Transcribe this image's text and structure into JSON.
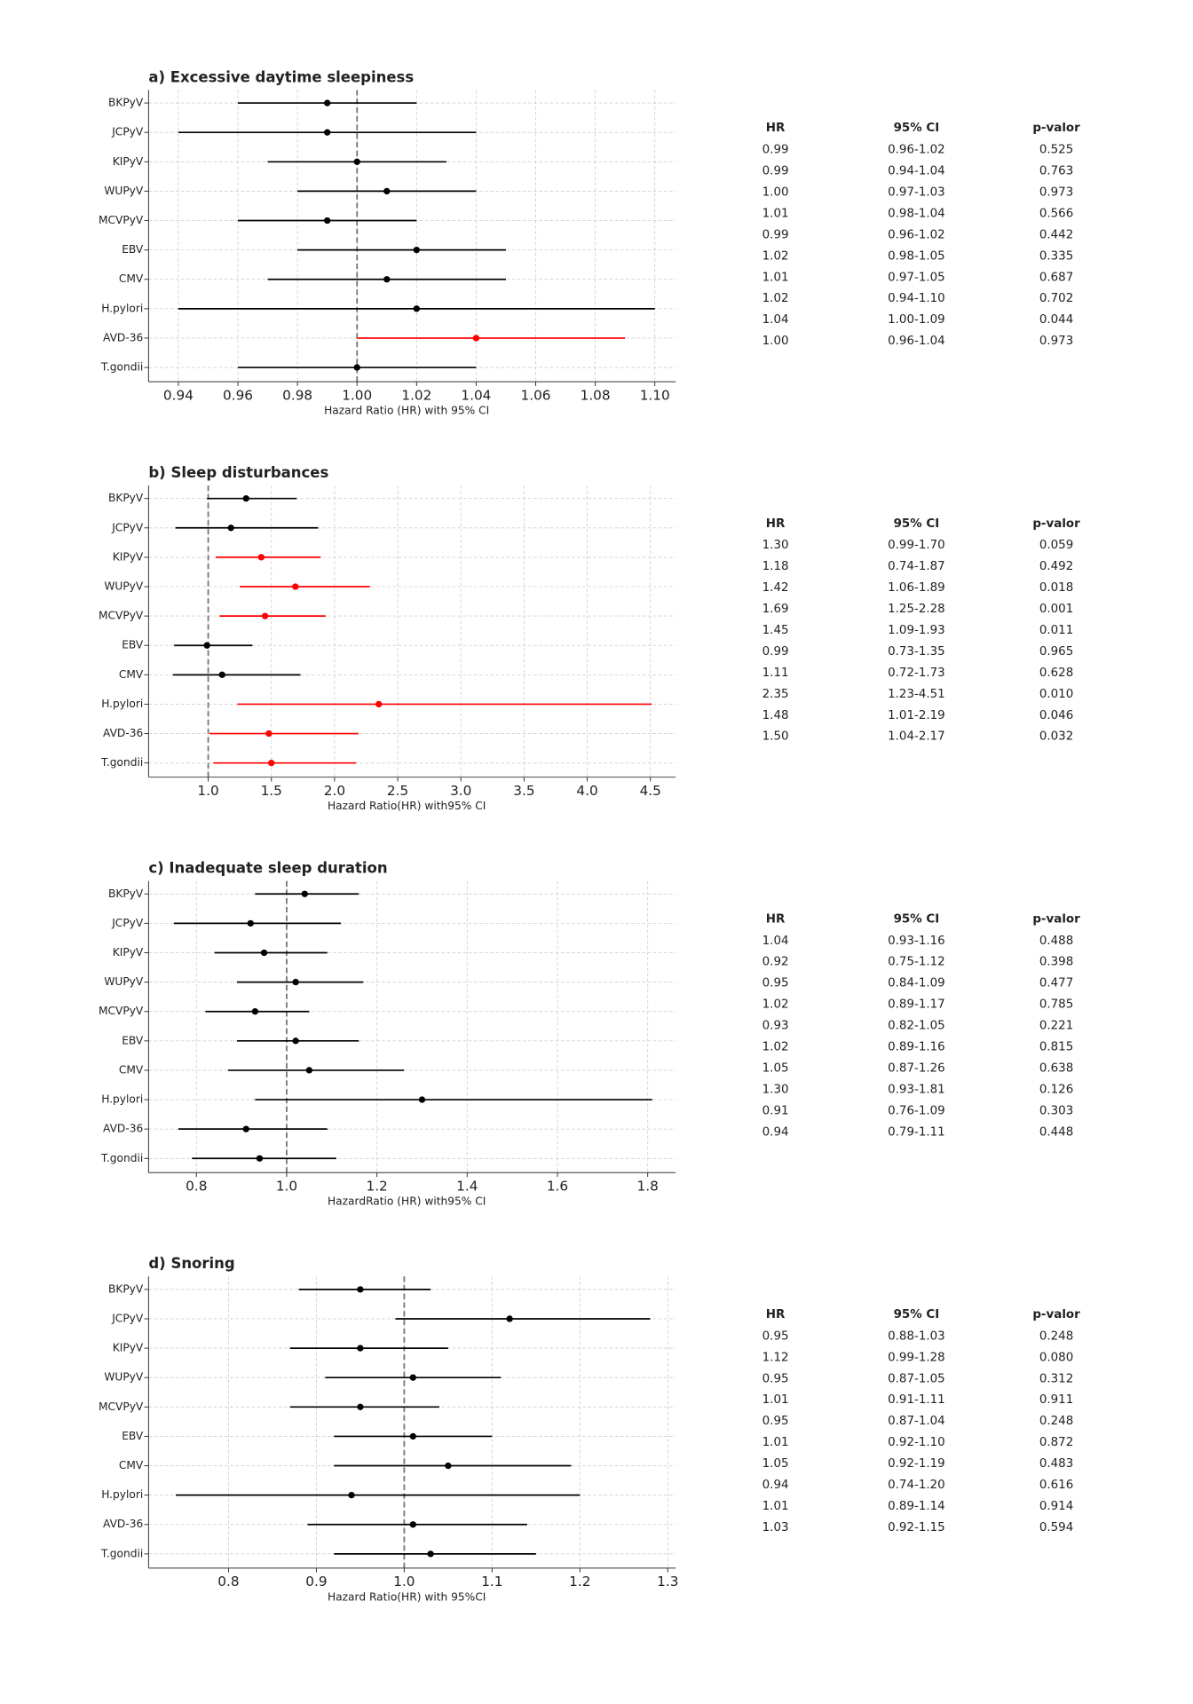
{
  "chart_data": [
    {
      "type": "forest",
      "title": "a) Excessive daytime sleepiness",
      "xlabel": "Hazard Ratio (HR) with 95% CI",
      "categories": [
        "BKPyV",
        "JCPyV",
        "KIPyV",
        "WUPyV",
        "MCVPyV",
        "EBV",
        "CMV",
        "H.pylori",
        "AVD-36",
        "T.gondii"
      ],
      "values": [
        0.99,
        0.99,
        1.0,
        1.01,
        0.99,
        1.02,
        1.01,
        1.02,
        1.04,
        1.0
      ],
      "value_labels": [
        "0.99",
        "0.99",
        "1.00",
        "1.01",
        "0.99",
        "1.02",
        "1.01",
        "1.02",
        "1.04",
        "1.00"
      ],
      "ci_low": [
        0.96,
        0.94,
        0.97,
        0.98,
        0.96,
        0.98,
        0.97,
        0.94,
        1.0,
        0.96
      ],
      "ci_high": [
        1.02,
        1.04,
        1.03,
        1.04,
        1.02,
        1.05,
        1.05,
        1.1,
        1.09,
        1.04
      ],
      "ci_labels": [
        "0.96-1.02",
        "0.94-1.04",
        "0.97-1.03",
        "0.98-1.04",
        "0.96-1.02",
        "0.98-1.05",
        "0.97-1.05",
        "0.94-1.10",
        "1.00-1.09",
        "0.96-1.04"
      ],
      "p_values": [
        "0.525",
        "0.763",
        "0.973",
        "0.566",
        "0.442",
        "0.335",
        "0.687",
        "0.702",
        "0.044",
        "0.973"
      ],
      "colors": [
        "#000000",
        "#000000",
        "#000000",
        "#000000",
        "#000000",
        "#000000",
        "#000000",
        "#000000",
        "#ff0000",
        "#000000"
      ],
      "table_columns": [
        "HR",
        "95% CI",
        "p-valor"
      ],
      "xlim": [
        0.93,
        1.107
      ],
      "xticks": [
        0.94,
        0.96,
        0.98,
        {
          "value": 1.0,
          "label": "1.00"
        },
        1.02,
        1.04,
        1.06,
        1.08,
        {
          "value": 1.1,
          "label": "1.10"
        }
      ],
      "ref_line": 1,
      "grid": true
    },
    {
      "type": "forest",
      "title": "b) Sleep disturbances",
      "xlabel": "Hazard Ratio(HR) with95% CI",
      "categories": [
        "BKPyV",
        "JCPyV",
        "KIPyV",
        "WUPyV",
        "MCVPyV",
        "EBV",
        "CMV",
        "H.pylori",
        "AVD-36",
        "T.gondii"
      ],
      "values": [
        1.3,
        1.18,
        1.42,
        1.69,
        1.45,
        0.99,
        1.11,
        2.35,
        1.48,
        1.5
      ],
      "value_labels": [
        "1.30",
        "1.18",
        "1.42",
        "1.69",
        "1.45",
        "0.99",
        "1.11",
        "2.35",
        "1.48",
        "1.50"
      ],
      "ci_low": [
        0.99,
        0.74,
        1.06,
        1.25,
        1.09,
        0.73,
        0.72,
        1.23,
        1.01,
        1.04
      ],
      "ci_high": [
        1.7,
        1.87,
        1.89,
        2.28,
        1.93,
        1.35,
        1.73,
        4.51,
        2.19,
        2.17
      ],
      "ci_labels": [
        "0.99-1.70",
        "0.74-1.87",
        "1.06-1.89",
        "1.25-2.28",
        "1.09-1.93",
        "0.73-1.35",
        "0.72-1.73",
        "1.23-4.51",
        "1.01-2.19",
        "1.04-2.17"
      ],
      "p_values": [
        "0.059",
        "0.492",
        "0.018",
        "0.001",
        "0.011",
        "0.965",
        "0.628",
        "0.010",
        "0.046",
        "0.032"
      ],
      "colors": [
        "#000000",
        "#000000",
        "#ff0000",
        "#ff0000",
        "#ff0000",
        "#000000",
        "#000000",
        "#ff0000",
        "#ff0000",
        "#ff0000"
      ],
      "table_columns": [
        "HR",
        "95% CI",
        "p-valor"
      ],
      "xlim": [
        0.528,
        4.7
      ],
      "xticks": [
        {
          "value": 1,
          "label": "1.0"
        },
        1.5,
        {
          "value": 2,
          "label": "2.0"
        },
        2.5,
        {
          "value": 3,
          "label": "3.0"
        },
        3.5,
        {
          "value": 4,
          "label": "4.0"
        },
        4.5
      ],
      "ref_line": 1,
      "grid": true
    },
    {
      "type": "forest",
      "title": "c) Inadequate sleep duration",
      "xlabel": "HazardRatio (HR) with95% CI",
      "categories": [
        "BKPyV",
        "JCPyV",
        "KIPyV",
        "WUPyV",
        "MCVPyV",
        "EBV",
        "CMV",
        "H.pylori",
        "AVD-36",
        "T.gondii"
      ],
      "values": [
        1.04,
        0.92,
        0.95,
        1.02,
        0.93,
        1.02,
        1.05,
        1.3,
        0.91,
        0.94
      ],
      "value_labels": [
        "1.04",
        "0.92",
        "0.95",
        "1.02",
        "0.93",
        "1.02",
        "1.05",
        "1.30",
        "0.91",
        "0.94"
      ],
      "ci_low": [
        0.93,
        0.75,
        0.84,
        0.89,
        0.82,
        0.89,
        0.87,
        0.93,
        0.76,
        0.79
      ],
      "ci_high": [
        1.16,
        1.12,
        1.09,
        1.17,
        1.05,
        1.16,
        1.26,
        1.81,
        1.09,
        1.11
      ],
      "ci_labels": [
        "0.93-1.16",
        "0.75-1.12",
        "0.84-1.09",
        "0.89-1.17",
        "0.82-1.05",
        "0.89-1.16",
        "0.87-1.26",
        "0.93-1.81",
        "0.76-1.09",
        "0.79-1.11"
      ],
      "p_values": [
        "0.488",
        "0.398",
        "0.477",
        "0.785",
        "0.221",
        "0.815",
        "0.638",
        "0.126",
        "0.303",
        "0.448"
      ],
      "colors": [
        "#000000",
        "#000000",
        "#000000",
        "#000000",
        "#000000",
        "#000000",
        "#000000",
        "#000000",
        "#000000",
        "#000000"
      ],
      "table_columns": [
        "HR",
        "95% CI",
        "p-valor"
      ],
      "xlim": [
        0.694,
        1.862
      ],
      "xticks": [
        0.8,
        {
          "value": 1,
          "label": "1.0"
        },
        1.2,
        1.4,
        1.6,
        1.8
      ],
      "ref_line": 1,
      "grid": true
    },
    {
      "type": "forest",
      "title": "d) Snoring",
      "xlabel": "Hazard Ratio(HR) with 95%CI",
      "categories": [
        "BKPyV",
        "JCPyV",
        "KIPyV",
        "WUPyV",
        "MCVPyV",
        "EBV",
        "CMV",
        "H.pylori",
        "AVD-36",
        "T.gondii"
      ],
      "values": [
        0.95,
        1.12,
        0.95,
        1.01,
        0.95,
        1.01,
        1.05,
        0.94,
        1.01,
        1.03
      ],
      "value_labels": [
        "0.95",
        "1.12",
        "0.95",
        "1.01",
        "0.95",
        "1.01",
        "1.05",
        "0.94",
        "1.01",
        "1.03"
      ],
      "ci_low": [
        0.88,
        0.99,
        0.87,
        0.91,
        0.87,
        0.92,
        0.92,
        0.74,
        0.89,
        0.92
      ],
      "ci_high": [
        1.03,
        1.28,
        1.05,
        1.11,
        1.04,
        1.1,
        1.19,
        1.2,
        1.14,
        1.15
      ],
      "ci_labels": [
        "0.88-1.03",
        "0.99-1.28",
        "0.87-1.05",
        "0.91-1.11",
        "0.87-1.04",
        "0.92-1.10",
        "0.92-1.19",
        "0.74-1.20",
        "0.89-1.14",
        "0.92-1.15"
      ],
      "p_values": [
        "0.248",
        "0.080",
        "0.312",
        "0.911",
        "0.248",
        "0.872",
        "0.483",
        "0.616",
        "0.914",
        "0.594"
      ],
      "colors": [
        "#000000",
        "#000000",
        "#000000",
        "#000000",
        "#000000",
        "#000000",
        "#000000",
        "#000000",
        "#000000",
        "#000000"
      ],
      "table_columns": [
        "HR",
        "95% CI",
        "p-valor"
      ],
      "xlim": [
        0.709,
        1.309
      ],
      "xticks": [
        0.8,
        0.9,
        {
          "value": 1,
          "label": "1.0"
        },
        1.1,
        1.2,
        1.3
      ],
      "ref_line": 1,
      "grid": true
    }
  ]
}
